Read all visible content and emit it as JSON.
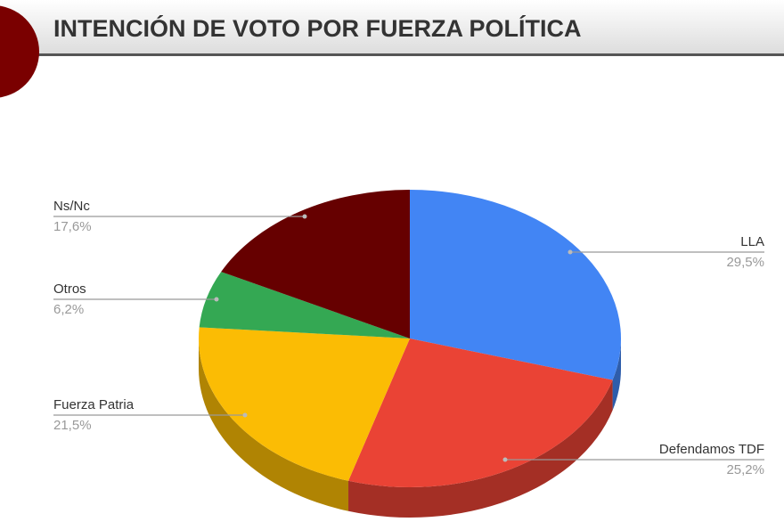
{
  "chart_data": {
    "type": "pie",
    "title": "INTENCIÓN DE VOTO POR FUERZA POLÍTICA",
    "categories": [
      "LLA",
      "Defendamos TDF",
      "Fuerza Patria",
      "Otros",
      "Ns/Nc"
    ],
    "values": [
      29.5,
      25.2,
      21.5,
      6.2,
      17.6
    ],
    "value_labels": [
      "29,5%",
      "25,2%",
      "21,5%",
      "6,2%",
      "17,6%"
    ],
    "colors": [
      "#4285f4",
      "#ea4335",
      "#fbbc04",
      "#34a853",
      "#660000"
    ]
  }
}
